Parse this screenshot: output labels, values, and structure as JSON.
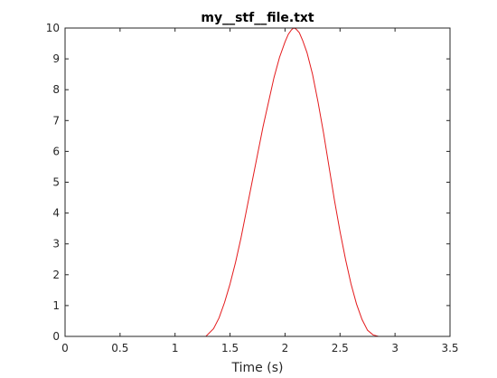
{
  "chart_data": {
    "type": "line",
    "title": "my__stf__file.txt",
    "xlabel": "Time (s)",
    "ylabel": "",
    "xlim": [
      0,
      3.5
    ],
    "ylim": [
      0,
      10
    ],
    "xticks": [
      "0",
      "0.5",
      "1",
      "1.5",
      "2",
      "2.5",
      "3",
      "3.5"
    ],
    "yticks": [
      "0",
      "1",
      "2",
      "3",
      "4",
      "5",
      "6",
      "7",
      "8",
      "9",
      "10"
    ],
    "grid": false,
    "legend": "none",
    "line_color": "#e41a1c",
    "series": [
      {
        "x": [
          0,
          0.5,
          1.0,
          1.28,
          1.35,
          1.4,
          1.45,
          1.5,
          1.55,
          1.6,
          1.65,
          1.7,
          1.75,
          1.8,
          1.85,
          1.9,
          1.95,
          2.0,
          2.03,
          2.06,
          2.08,
          2.1,
          2.13,
          2.16,
          2.2,
          2.25,
          2.3,
          2.35,
          2.4,
          2.45,
          2.5,
          2.55,
          2.6,
          2.65,
          2.7,
          2.75,
          2.8,
          2.85,
          2.9,
          3.0,
          3.12
        ],
        "y": [
          0,
          0,
          0,
          0,
          0.25,
          0.6,
          1.1,
          1.7,
          2.4,
          3.2,
          4.1,
          5.0,
          5.9,
          6.8,
          7.6,
          8.4,
          9.05,
          9.55,
          9.8,
          9.95,
          10.0,
          9.97,
          9.85,
          9.6,
          9.2,
          8.5,
          7.6,
          6.6,
          5.5,
          4.4,
          3.4,
          2.5,
          1.7,
          1.05,
          0.55,
          0.2,
          0.05,
          0,
          0,
          0,
          0
        ]
      }
    ]
  }
}
